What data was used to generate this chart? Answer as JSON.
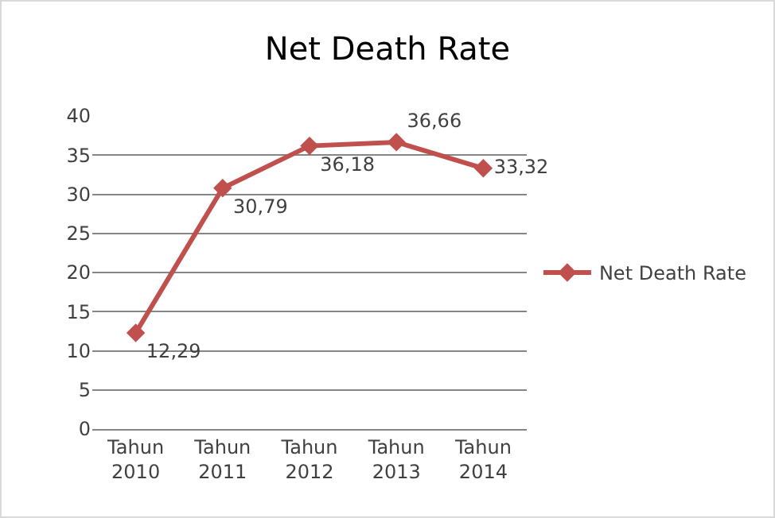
{
  "chart_data": {
    "type": "line",
    "title": "Net Death Rate",
    "categories": [
      "Tahun 2010",
      "Tahun 2011",
      "Tahun 2012",
      "Tahun 2013",
      "Tahun 2014"
    ],
    "series": [
      {
        "name": "Net Death Rate",
        "color": "#c0504d",
        "values": [
          12.29,
          30.79,
          36.18,
          36.66,
          33.32
        ],
        "value_labels": [
          "12,29",
          "30,79",
          "36,18",
          "36,66",
          "33,32"
        ]
      }
    ],
    "ylim": [
      0,
      40
    ],
    "yticks": [
      0,
      5,
      10,
      15,
      20,
      25,
      30,
      35,
      40
    ],
    "grid": "y",
    "legend": "right",
    "marker": "diamond",
    "line_style": "solid"
  }
}
